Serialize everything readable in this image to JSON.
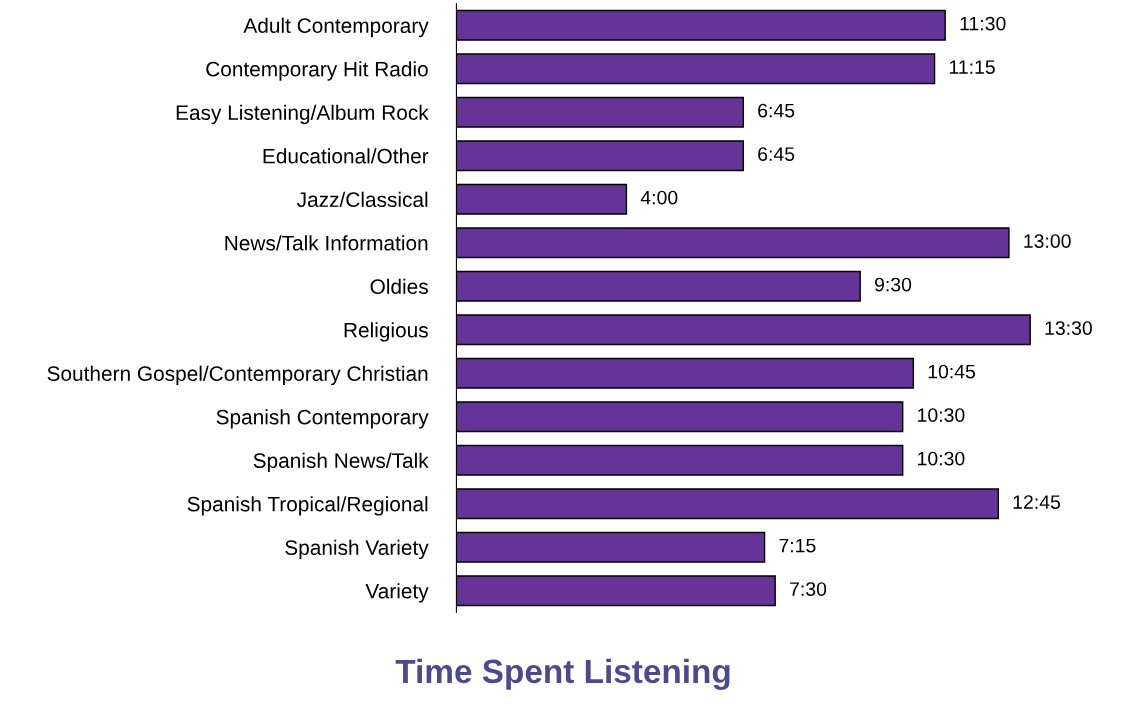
{
  "chart_data": {
    "type": "bar",
    "orientation": "horizontal",
    "title": "Time Spent Listening",
    "categories": [
      "Adult Contemporary",
      "Contemporary Hit Radio",
      "Easy Listening/Album Rock",
      "Educational/Other",
      "Jazz/Classical",
      "News/Talk Information",
      "Oldies",
      "Religious",
      "Southern Gospel/Contemporary Christian",
      "Spanish Contemporary",
      "Spanish News/Talk",
      "Spanish Tropical/Regional",
      "Spanish Variety",
      "Variety"
    ],
    "values": [
      11.5,
      11.25,
      6.75,
      6.75,
      4.0,
      13.0,
      9.5,
      13.5,
      10.75,
      10.5,
      10.5,
      12.75,
      7.25,
      7.5
    ],
    "value_labels": [
      "11:30",
      "11:15",
      "6:45",
      "6:45",
      "4:00",
      "13:00",
      "9:30",
      "13:30",
      "10:45",
      "10:30",
      "10:30",
      "12:45",
      "7:15",
      "7:30"
    ],
    "color": "#663399",
    "tick_labels": "y",
    "grid": false,
    "legend": false
  }
}
